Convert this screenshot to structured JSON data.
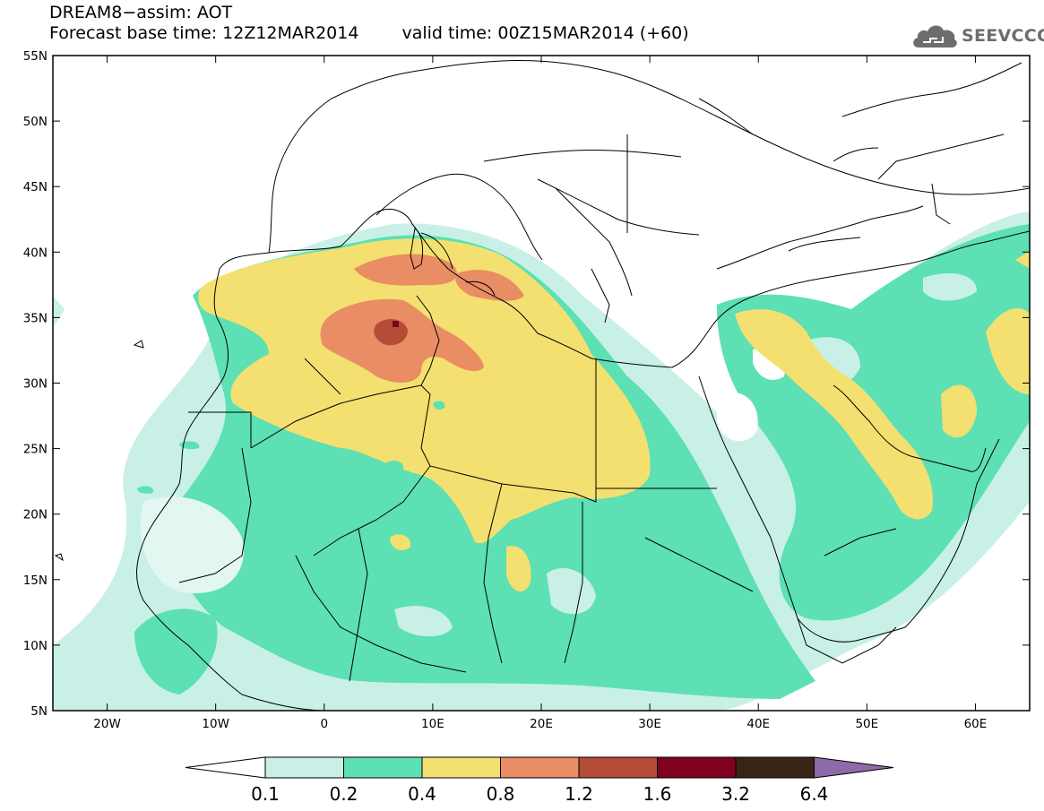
{
  "header": {
    "title_line1": "DREAM8−assim: AOT",
    "forecast_base": "Forecast base time: 12Z12MAR2014",
    "valid_time": "valid time: 00Z15MAR2014 (+60)"
  },
  "logo": {
    "text": "SEEVCCC",
    "icon": "cloud-icon"
  },
  "map": {
    "lon_range": [
      -25,
      65
    ],
    "lat_range": [
      5,
      55
    ],
    "lat_ticks": [
      {
        "value": 55,
        "label": "55N"
      },
      {
        "value": 50,
        "label": "50N"
      },
      {
        "value": 45,
        "label": "45N"
      },
      {
        "value": 40,
        "label": "40N"
      },
      {
        "value": 35,
        "label": "35N"
      },
      {
        "value": 30,
        "label": "30N"
      },
      {
        "value": 25,
        "label": "25N"
      },
      {
        "value": 20,
        "label": "20N"
      },
      {
        "value": 15,
        "label": "15N"
      },
      {
        "value": 10,
        "label": "10N"
      },
      {
        "value": 5,
        "label": "5N"
      }
    ],
    "lon_ticks": [
      {
        "value": -20,
        "label": "20W"
      },
      {
        "value": -10,
        "label": "10W"
      },
      {
        "value": 0,
        "label": "0"
      },
      {
        "value": 10,
        "label": "10E"
      },
      {
        "value": 20,
        "label": "20E"
      },
      {
        "value": 30,
        "label": "30E"
      },
      {
        "value": 40,
        "label": "40E"
      },
      {
        "value": 50,
        "label": "50E"
      },
      {
        "value": 60,
        "label": "60E"
      }
    ]
  },
  "legend": {
    "levels": [
      "0.1",
      "0.2",
      "0.4",
      "0.8",
      "1.2",
      "1.6",
      "3.2",
      "6.4"
    ],
    "colors": [
      "#ffffff",
      "#c8f0e6",
      "#5ce0b4",
      "#f3e070",
      "#e88d64",
      "#b44c38",
      "#800020",
      "#3a2418",
      "#8f6aa8"
    ]
  }
}
